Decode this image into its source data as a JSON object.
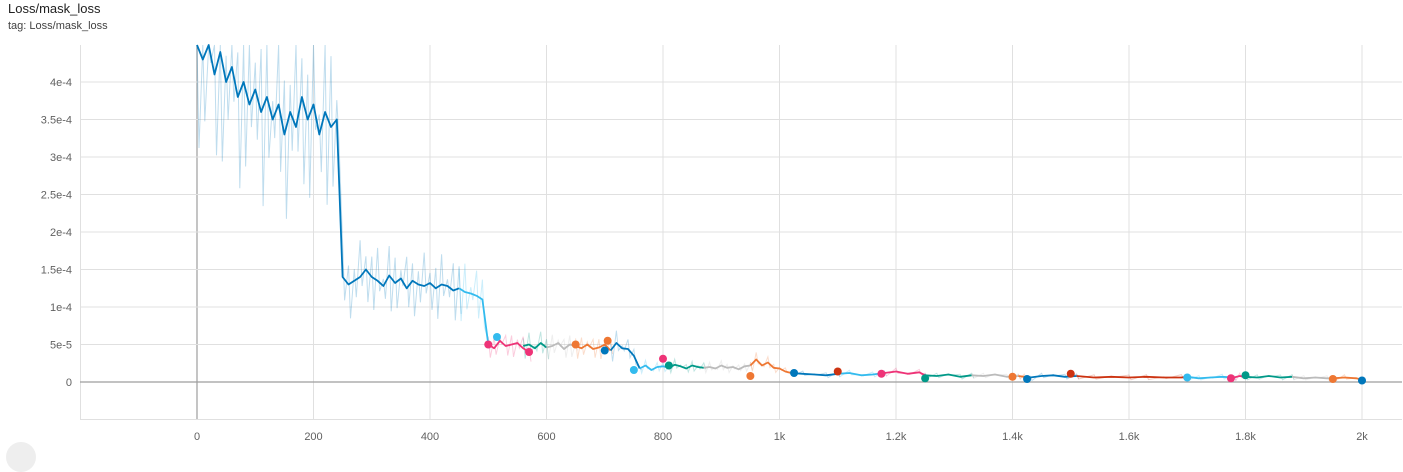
{
  "header": {
    "title": "Loss/mask_loss",
    "tag": "tag: Loss/mask_loss"
  },
  "chart_data": {
    "type": "line",
    "title": "Loss/mask_loss",
    "xlabel": "",
    "ylabel": "",
    "xlim": [
      -200,
      2020
    ],
    "ylim": [
      -5e-05,
      0.00045
    ],
    "grid": true,
    "x_ticks": [
      0,
      200,
      400,
      600,
      800,
      1000,
      1200,
      1400,
      1600,
      1800,
      2000
    ],
    "x_tick_labels": [
      "0",
      "200",
      "400",
      "600",
      "800",
      "1k",
      "1.2k",
      "1.4k",
      "1.6k",
      "1.8k",
      "2k"
    ],
    "y_ticks": [
      0,
      5e-05,
      0.0001,
      0.00015,
      0.0002,
      0.00025,
      0.0003,
      0.00035,
      0.0004
    ],
    "y_tick_labels": [
      "0",
      "5e-5",
      "1e-4",
      "1.5e-4",
      "2e-4",
      "2.5e-4",
      "3e-4",
      "3.5e-4",
      "4e-4"
    ],
    "series": [
      {
        "color": "#0077bb",
        "x": [
          0,
          10,
          20,
          30,
          40,
          50,
          60,
          70,
          80,
          90,
          100,
          110,
          120,
          130,
          140,
          150,
          160,
          170,
          180,
          190,
          200,
          210,
          220,
          230,
          240,
          250,
          260,
          270,
          280,
          290,
          300,
          310,
          320,
          330,
          340,
          350,
          360,
          370,
          380,
          390,
          400,
          410,
          420,
          430,
          440,
          450
        ],
        "y": [
          0.00048,
          0.00043,
          0.00046,
          0.00041,
          0.00044,
          0.0004,
          0.00042,
          0.00038,
          0.0004,
          0.00037,
          0.00039,
          0.00036,
          0.00038,
          0.00035,
          0.00037,
          0.00033,
          0.00036,
          0.00034,
          0.00038,
          0.00035,
          0.00037,
          0.00033,
          0.00036,
          0.00034,
          0.00035,
          0.00014,
          0.00013,
          0.000135,
          0.00014,
          0.00015,
          0.00014,
          0.000135,
          0.000128,
          0.000142,
          0.000132,
          0.000138,
          0.000125,
          0.000135,
          0.00013,
          0.000128,
          0.000132,
          0.000125,
          0.00013,
          0.000128,
          0.000122,
          0.000125
        ]
      },
      {
        "color": "#33bbee",
        "x": [
          450,
          460,
          470,
          480,
          490,
          500
        ],
        "y": [
          0.000125,
          0.00012,
          0.000118,
          0.000115,
          0.00011,
          5e-05
        ]
      },
      {
        "color": "#ee3377",
        "x": [
          500,
          510,
          520,
          530,
          540,
          550,
          560,
          570
        ],
        "y": [
          5e-05,
          4.5e-05,
          5.5e-05,
          4.8e-05,
          5e-05,
          5.2e-05,
          4.5e-05,
          4e-05
        ]
      },
      {
        "color": "#009988",
        "x": [
          560,
          570,
          580,
          590,
          600
        ],
        "y": [
          4.8e-05,
          5e-05,
          4.5e-05,
          5.2e-05,
          4.6e-05
        ]
      },
      {
        "color": "#bbbbbb",
        "x": [
          600,
          610,
          620,
          630,
          640,
          650
        ],
        "y": [
          4.6e-05,
          4.8e-05,
          5.2e-05,
          4.4e-05,
          5e-05,
          4.8e-05
        ]
      },
      {
        "color": "#ee7733",
        "x": [
          650,
          660,
          670,
          680,
          690,
          700,
          710
        ],
        "y": [
          4.8e-05,
          4.5e-05,
          5e-05,
          4.4e-05,
          4.6e-05,
          5e-05,
          4.2e-05
        ]
      },
      {
        "color": "#0077bb",
        "x": [
          710,
          720,
          730,
          740,
          750,
          760
        ],
        "y": [
          4.2e-05,
          5.2e-05,
          4.5e-05,
          4.4e-05,
          3.5e-05,
          1.8e-05
        ]
      },
      {
        "color": "#33bbee",
        "x": [
          760,
          770,
          780,
          790,
          800,
          810
        ],
        "y": [
          1.8e-05,
          2.2e-05,
          1.6e-05,
          2e-05,
          2.1e-05,
          1.9e-05
        ]
      },
      {
        "color": "#009988",
        "x": [
          810,
          820,
          830,
          840,
          850,
          860,
          870
        ],
        "y": [
          1.9e-05,
          2.3e-05,
          2.1e-05,
          1.8e-05,
          2.2e-05,
          2e-05,
          1.9e-05
        ]
      },
      {
        "color": "#bbbbbb",
        "x": [
          870,
          880,
          890,
          900,
          910,
          920,
          930,
          940,
          950
        ],
        "y": [
          1.9e-05,
          2e-05,
          1.8e-05,
          2.2e-05,
          1.9e-05,
          2e-05,
          1.7e-05,
          2.1e-05,
          2.2e-05
        ]
      },
      {
        "color": "#ee7733",
        "x": [
          950,
          960,
          970,
          980,
          990,
          1000,
          1010,
          1020
        ],
        "y": [
          2.2e-05,
          3e-05,
          2.2e-05,
          2.6e-05,
          1.9e-05,
          1.8e-05,
          1.4e-05,
          1.2e-05
        ]
      },
      {
        "color": "#0077bb",
        "x": [
          1020,
          1040,
          1060,
          1080,
          1100
        ],
        "y": [
          1.2e-05,
          1.1e-05,
          1e-05,
          9e-06,
          1.1e-05
        ]
      },
      {
        "color": "#33bbee",
        "x": [
          1100,
          1120,
          1140,
          1160,
          1180
        ],
        "y": [
          1.1e-05,
          1.2e-05,
          9e-06,
          1e-05,
          1.2e-05
        ]
      },
      {
        "color": "#ee3377",
        "x": [
          1180,
          1200,
          1220,
          1240,
          1250
        ],
        "y": [
          1.2e-05,
          1.4e-05,
          1.1e-05,
          1.3e-05,
          9e-06
        ]
      },
      {
        "color": "#009988",
        "x": [
          1250,
          1270,
          1290,
          1310,
          1330
        ],
        "y": [
          9e-06,
          8e-06,
          1e-05,
          7e-06,
          9e-06
        ]
      },
      {
        "color": "#bbbbbb",
        "x": [
          1330,
          1350,
          1370,
          1390,
          1410
        ],
        "y": [
          9e-06,
          8e-06,
          1e-05,
          7e-06,
          8e-06
        ]
      },
      {
        "color": "#ee7733",
        "x": [
          1410,
          1420,
          1430
        ],
        "y": [
          8e-06,
          7e-06,
          6e-06
        ]
      },
      {
        "color": "#0077bb",
        "x": [
          1430,
          1450,
          1470,
          1490,
          1510
        ],
        "y": [
          6e-06,
          8e-06,
          9e-06,
          7e-06,
          8e-06
        ]
      },
      {
        "color": "#cc3311",
        "x": [
          1510,
          1540,
          1570,
          1600,
          1630,
          1660,
          1690,
          1700
        ],
        "y": [
          8e-06,
          6e-06,
          7e-06,
          6e-06,
          7e-06,
          6e-06,
          6e-06,
          7e-06
        ]
      },
      {
        "color": "#33bbee",
        "x": [
          1700,
          1720,
          1740,
          1760,
          1780
        ],
        "y": [
          7e-06,
          5e-06,
          6e-06,
          7e-06,
          6e-06
        ]
      },
      {
        "color": "#ee3377",
        "x": [
          1780,
          1790,
          1800
        ],
        "y": [
          6e-06,
          8e-06,
          7e-06
        ]
      },
      {
        "color": "#009988",
        "x": [
          1800,
          1820,
          1840,
          1860,
          1880
        ],
        "y": [
          7e-06,
          6e-06,
          8e-06,
          6e-06,
          7e-06
        ]
      },
      {
        "color": "#bbbbbb",
        "x": [
          1880,
          1900,
          1920,
          1940,
          1950
        ],
        "y": [
          7e-06,
          5e-06,
          6e-06,
          5e-06,
          5e-06
        ]
      },
      {
        "color": "#ee7733",
        "x": [
          1950,
          1970,
          1990,
          2000
        ],
        "y": [
          5e-06,
          6e-06,
          5e-06,
          3e-06
        ]
      }
    ],
    "markers": [
      {
        "x": 500,
        "y": 5e-05,
        "color": "#ee3377"
      },
      {
        "x": 515,
        "y": 6e-05,
        "color": "#33bbee"
      },
      {
        "x": 570,
        "y": 4e-05,
        "color": "#ee3377"
      },
      {
        "x": 650,
        "y": 5e-05,
        "color": "#ee7733"
      },
      {
        "x": 700,
        "y": 4.2e-05,
        "color": "#0077bb"
      },
      {
        "x": 705,
        "y": 5.5e-05,
        "color": "#ee7733"
      },
      {
        "x": 750,
        "y": 1.6e-05,
        "color": "#33bbee"
      },
      {
        "x": 800,
        "y": 3.1e-05,
        "color": "#ee3377"
      },
      {
        "x": 810,
        "y": 2.2e-05,
        "color": "#009988"
      },
      {
        "x": 950,
        "y": 8e-06,
        "color": "#ee7733"
      },
      {
        "x": 1025,
        "y": 1.2e-05,
        "color": "#0077bb"
      },
      {
        "x": 1100,
        "y": 1.4e-05,
        "color": "#cc3311"
      },
      {
        "x": 1175,
        "y": 1.1e-05,
        "color": "#ee3377"
      },
      {
        "x": 1250,
        "y": 5e-06,
        "color": "#009988"
      },
      {
        "x": 1400,
        "y": 7e-06,
        "color": "#ee7733"
      },
      {
        "x": 1425,
        "y": 4e-06,
        "color": "#0077bb"
      },
      {
        "x": 1500,
        "y": 1.1e-05,
        "color": "#cc3311"
      },
      {
        "x": 1700,
        "y": 6e-06,
        "color": "#33bbee"
      },
      {
        "x": 1775,
        "y": 5e-06,
        "color": "#ee3377"
      },
      {
        "x": 1800,
        "y": 9e-06,
        "color": "#009988"
      },
      {
        "x": 1950,
        "y": 4e-06,
        "color": "#ee7733"
      },
      {
        "x": 2000,
        "y": 2e-06,
        "color": "#0077bb"
      }
    ]
  }
}
